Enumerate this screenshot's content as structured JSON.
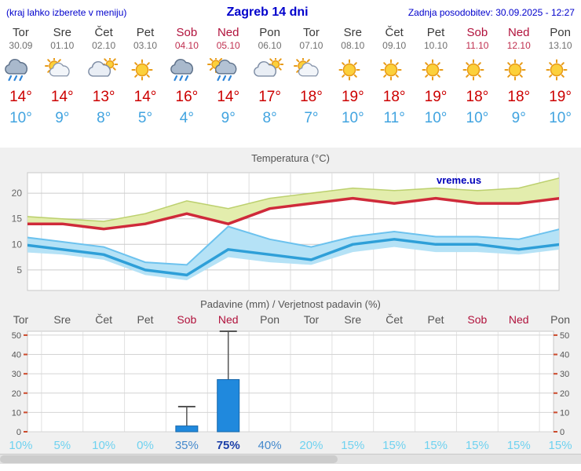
{
  "header": {
    "left": "(kraj lahko izberete v meniju)",
    "title": "Zagreb 14 dni",
    "right": "Zadnja posodobitev: 30.09.2025 - 12:27"
  },
  "branding": "vreme.us",
  "days": [
    {
      "name": "Tor",
      "date": "30.09",
      "weekend": false,
      "icon": "rain",
      "tmax": "14°",
      "tmin": "10°"
    },
    {
      "name": "Sre",
      "date": "01.10",
      "weekend": false,
      "icon": "partly",
      "tmax": "14°",
      "tmin": "9°"
    },
    {
      "name": "Čet",
      "date": "02.10",
      "weekend": false,
      "icon": "cloudy",
      "tmax": "13°",
      "tmin": "8°"
    },
    {
      "name": "Pet",
      "date": "03.10",
      "weekend": false,
      "icon": "sunny",
      "tmax": "14°",
      "tmin": "5°"
    },
    {
      "name": "Sob",
      "date": "04.10",
      "weekend": true,
      "icon": "rain",
      "tmax": "16°",
      "tmin": "4°"
    },
    {
      "name": "Ned",
      "date": "05.10",
      "weekend": true,
      "icon": "rain-sun",
      "tmax": "14°",
      "tmin": "9°"
    },
    {
      "name": "Pon",
      "date": "06.10",
      "weekend": false,
      "icon": "cloudy",
      "tmax": "17°",
      "tmin": "8°"
    },
    {
      "name": "Tor",
      "date": "07.10",
      "weekend": false,
      "icon": "partly",
      "tmax": "18°",
      "tmin": "7°"
    },
    {
      "name": "Sre",
      "date": "08.10",
      "weekend": false,
      "icon": "sunny",
      "tmax": "19°",
      "tmin": "10°"
    },
    {
      "name": "Čet",
      "date": "09.10",
      "weekend": false,
      "icon": "sunny",
      "tmax": "18°",
      "tmin": "11°"
    },
    {
      "name": "Pet",
      "date": "10.10",
      "weekend": false,
      "icon": "sunny",
      "tmax": "19°",
      "tmin": "10°"
    },
    {
      "name": "Sob",
      "date": "11.10",
      "weekend": true,
      "icon": "sunny",
      "tmax": "18°",
      "tmin": "10°"
    },
    {
      "name": "Ned",
      "date": "12.10",
      "weekend": true,
      "icon": "sunny",
      "tmax": "18°",
      "tmin": "9°"
    },
    {
      "name": "Pon",
      "date": "13.10",
      "weekend": false,
      "icon": "sunny",
      "tmax": "19°",
      "tmin": "10°"
    }
  ],
  "chart_data": [
    {
      "type": "line",
      "title": "Temperatura (°C)",
      "ylabel": "°C",
      "ylim": [
        1,
        24
      ],
      "yticks": [
        5,
        10,
        15,
        20
      ],
      "categories": [
        "Tor",
        "Sre",
        "Čet",
        "Pet",
        "Sob",
        "Ned",
        "Pon",
        "Tor",
        "Sre",
        "Čet",
        "Pet",
        "Sob",
        "Ned",
        "Pon"
      ],
      "series": [
        {
          "name": "t_max",
          "color": "#cf2a3a",
          "values": [
            14,
            14,
            13,
            14,
            16,
            14,
            17,
            18,
            19,
            18,
            19,
            18,
            18,
            19
          ]
        },
        {
          "name": "t_max_upper",
          "color": "#bcd06e",
          "values": [
            15.5,
            15,
            14.5,
            16,
            18.5,
            17,
            19,
            20,
            21,
            20.5,
            21,
            20.5,
            21,
            23
          ]
        },
        {
          "name": "t_min",
          "color": "#2e9fd8",
          "values": [
            10,
            9,
            8,
            5,
            4,
            9,
            8,
            7,
            10,
            11,
            10,
            10,
            9,
            10
          ]
        },
        {
          "name": "t_min_upper",
          "color": "#6cc2ee",
          "values": [
            11.5,
            10.5,
            9.5,
            6.5,
            6,
            13.5,
            11,
            9.5,
            11.5,
            12.5,
            11.5,
            11.5,
            11,
            13
          ]
        },
        {
          "name": "t_min_lower",
          "color": "#b5e2f6",
          "values": [
            8.5,
            8,
            7,
            4,
            3,
            7.5,
            6.5,
            6,
            8.5,
            9.5,
            8.5,
            8.5,
            8,
            9
          ]
        }
      ],
      "legend": "none",
      "grid": true
    },
    {
      "type": "bar",
      "title": "Padavine (mm) / Verjetnost padavin (%)",
      "ylim": [
        0,
        52
      ],
      "yticks": [
        0,
        10,
        20,
        30,
        40,
        50
      ],
      "categories": [
        "Tor",
        "Sre",
        "Čet",
        "Pet",
        "Sob",
        "Ned",
        "Pon",
        "Tor",
        "Sre",
        "Čet",
        "Pet",
        "Sob",
        "Ned",
        "Pon"
      ],
      "weekend": [
        false,
        false,
        false,
        false,
        true,
        true,
        false,
        false,
        false,
        false,
        false,
        true,
        true,
        false
      ],
      "values": [
        0,
        0,
        0,
        0,
        3,
        27,
        0,
        0,
        0,
        0,
        0,
        0,
        0,
        0
      ],
      "whisker_max": [
        0,
        0,
        0,
        0,
        13,
        52,
        0,
        0,
        0,
        0,
        0,
        0,
        0,
        0
      ],
      "probabilities_pct": [
        10,
        5,
        10,
        0,
        35,
        75,
        40,
        20,
        15,
        15,
        15,
        15,
        15,
        15
      ],
      "probability_labels": [
        "10%",
        "5%",
        "10%",
        "0%",
        "35%",
        "75%",
        "40%",
        "20%",
        "15%",
        "15%",
        "15%",
        "15%",
        "15%",
        "15%"
      ],
      "grid": true
    }
  ],
  "colors": {
    "accent_blue": "#0000cc",
    "temp_max_red": "#cc0000",
    "temp_min_blue": "#42a4e0",
    "weekend_red": "#b1123c",
    "bar_blue": "#2089dd",
    "bar_border": "#1566a9",
    "prob_low": "#6fd2f0",
    "prob_mid": "#4489cc",
    "prob_high": "#1c3fa8"
  }
}
